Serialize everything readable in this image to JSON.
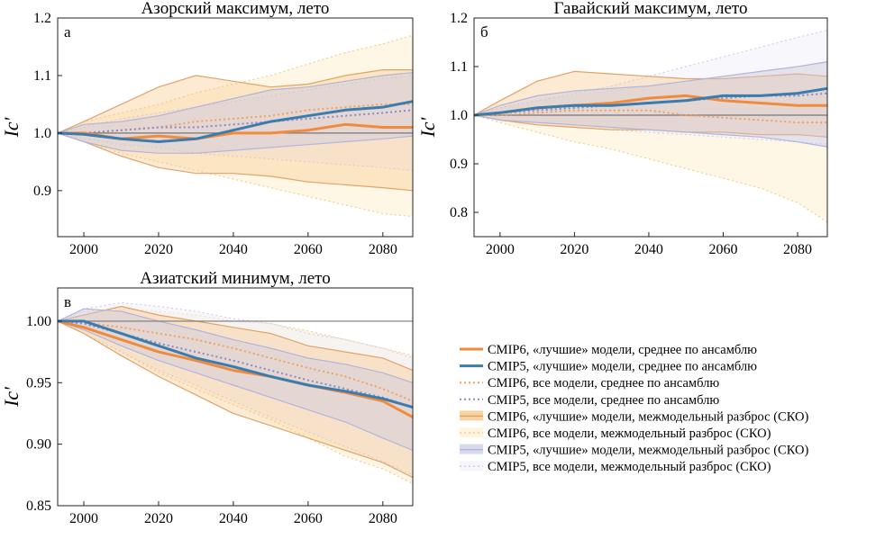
{
  "chart_data": [
    {
      "type": "line",
      "title": "Азорский максимум, лето",
      "panel_letter": "а",
      "ylabel": "Ic'",
      "xlim": [
        1993,
        2088
      ],
      "ylim": [
        0.82,
        1.2
      ],
      "x_ticks": [
        2000,
        2020,
        2040,
        2060,
        2080
      ],
      "y_ticks": [
        0.9,
        1.0,
        1.1,
        1.2
      ],
      "y_tick_labels": [
        "0.9",
        "1.0",
        "1.1",
        "1.2"
      ],
      "reference_line": 1.0,
      "x": [
        1993,
        2000,
        2010,
        2020,
        2030,
        2040,
        2050,
        2060,
        2070,
        2080,
        2088
      ],
      "series": [
        {
          "key": "cmip6_best_mean",
          "values": [
            1.0,
            1.0,
            0.99,
            0.995,
            0.99,
            1.0,
            1.0,
            1.005,
            1.015,
            1.01,
            1.01
          ]
        },
        {
          "key": "cmip5_best_mean",
          "values": [
            1.0,
            0.998,
            0.99,
            0.985,
            0.99,
            1.005,
            1.02,
            1.03,
            1.04,
            1.045,
            1.055
          ]
        },
        {
          "key": "cmip6_all_mean",
          "values": [
            1.0,
            1.0,
            1.005,
            1.01,
            1.02,
            1.025,
            1.03,
            1.04,
            1.045,
            1.05,
            1.05
          ]
        },
        {
          "key": "cmip5_all_mean",
          "values": [
            1.0,
            1.0,
            1.005,
            1.01,
            1.01,
            1.015,
            1.02,
            1.025,
            1.03,
            1.035,
            1.04
          ]
        }
      ],
      "bands": [
        {
          "key": "cmip6_all_sd",
          "lower": [
            1.0,
            0.985,
            0.965,
            0.95,
            0.935,
            0.92,
            0.905,
            0.89,
            0.875,
            0.86,
            0.855
          ],
          "upper": [
            1.0,
            1.02,
            1.035,
            1.05,
            1.07,
            1.085,
            1.1,
            1.12,
            1.14,
            1.155,
            1.17
          ]
        },
        {
          "key": "cmip5_all_sd",
          "lower": [
            1.0,
            0.99,
            0.98,
            0.975,
            0.965,
            0.96,
            0.955,
            0.95,
            0.945,
            0.94,
            0.935
          ],
          "upper": [
            1.0,
            1.01,
            1.025,
            1.035,
            1.045,
            1.055,
            1.065,
            1.075,
            1.085,
            1.095,
            1.1
          ]
        },
        {
          "key": "cmip6_best_sd",
          "lower": [
            1.0,
            0.985,
            0.96,
            0.94,
            0.93,
            0.93,
            0.925,
            0.915,
            0.91,
            0.905,
            0.9
          ],
          "upper": [
            1.0,
            1.02,
            1.05,
            1.08,
            1.1,
            1.09,
            1.08,
            1.085,
            1.1,
            1.11,
            1.11
          ]
        },
        {
          "key": "cmip5_best_sd",
          "lower": [
            1.0,
            0.985,
            0.97,
            0.965,
            0.965,
            0.97,
            0.975,
            0.98,
            0.985,
            0.99,
            0.995
          ],
          "upper": [
            1.0,
            1.015,
            1.02,
            1.03,
            1.045,
            1.06,
            1.075,
            1.08,
            1.09,
            1.1,
            1.105
          ]
        }
      ]
    },
    {
      "type": "line",
      "title": "Гавайский максимум, лето",
      "panel_letter": "б",
      "ylabel": "Ic'",
      "xlim": [
        1993,
        2088
      ],
      "ylim": [
        0.75,
        1.2
      ],
      "x_ticks": [
        2000,
        2020,
        2040,
        2060,
        2080
      ],
      "y_ticks": [
        0.8,
        0.9,
        1.0,
        1.1,
        1.2
      ],
      "y_tick_labels": [
        "0.8",
        "0.9",
        "1.0",
        "1.1",
        "1.2"
      ],
      "reference_line": 1.0,
      "x": [
        1993,
        2000,
        2010,
        2020,
        2030,
        2040,
        2050,
        2060,
        2070,
        2080,
        2088
      ],
      "series": [
        {
          "key": "cmip6_best_mean",
          "values": [
            1.0,
            1.005,
            1.015,
            1.02,
            1.025,
            1.035,
            1.04,
            1.03,
            1.025,
            1.02,
            1.02
          ]
        },
        {
          "key": "cmip5_best_mean",
          "values": [
            1.0,
            1.005,
            1.015,
            1.02,
            1.02,
            1.025,
            1.03,
            1.04,
            1.04,
            1.045,
            1.055
          ]
        },
        {
          "key": "cmip6_all_mean",
          "values": [
            1.0,
            1.0,
            1.005,
            1.01,
            1.01,
            1.01,
            1.0,
            0.995,
            0.99,
            0.985,
            0.985
          ]
        },
        {
          "key": "cmip5_all_mean",
          "values": [
            1.0,
            1.005,
            1.01,
            1.015,
            1.02,
            1.025,
            1.03,
            1.035,
            1.04,
            1.04,
            1.045
          ]
        }
      ],
      "bands": [
        {
          "key": "cmip6_all_sd",
          "lower": [
            1.0,
            0.985,
            0.965,
            0.945,
            0.93,
            0.91,
            0.89,
            0.87,
            0.85,
            0.82,
            0.78
          ],
          "upper": [
            1.0,
            1.015,
            1.03,
            1.04,
            1.05,
            1.06,
            1.07,
            1.08,
            1.09,
            1.1,
            1.11
          ]
        },
        {
          "key": "cmip5_all_sd",
          "lower": [
            1.0,
            0.99,
            0.98,
            0.975,
            0.97,
            0.965,
            0.96,
            0.955,
            0.95,
            0.945,
            0.94
          ],
          "upper": [
            1.0,
            1.015,
            1.03,
            1.045,
            1.06,
            1.08,
            1.1,
            1.12,
            1.14,
            1.16,
            1.175
          ]
        },
        {
          "key": "cmip6_best_sd",
          "lower": [
            1.0,
            0.99,
            0.98,
            0.975,
            0.97,
            0.97,
            0.965,
            0.965,
            0.96,
            0.96,
            0.955
          ],
          "upper": [
            1.0,
            1.03,
            1.07,
            1.09,
            1.085,
            1.08,
            1.075,
            1.075,
            1.08,
            1.085,
            1.08
          ]
        },
        {
          "key": "cmip5_best_sd",
          "lower": [
            1.0,
            0.99,
            0.985,
            0.98,
            0.975,
            0.97,
            0.965,
            0.96,
            0.955,
            0.945,
            0.935
          ],
          "upper": [
            1.0,
            1.02,
            1.04,
            1.05,
            1.055,
            1.06,
            1.07,
            1.08,
            1.09,
            1.1,
            1.11
          ]
        }
      ]
    },
    {
      "type": "line",
      "title": "Азиатский минимум, лето",
      "panel_letter": "в",
      "ylabel": "Ic'",
      "xlim": [
        1993,
        2088
      ],
      "ylim": [
        0.85,
        1.027
      ],
      "x_ticks": [
        2000,
        2020,
        2040,
        2060,
        2080
      ],
      "y_ticks": [
        0.85,
        0.9,
        0.95,
        1.0
      ],
      "y_tick_labels": [
        "0.85",
        "0.90",
        "0.95",
        "1.00"
      ],
      "reference_line": 1.0,
      "x": [
        1993,
        2000,
        2010,
        2020,
        2030,
        2040,
        2050,
        2060,
        2070,
        2080,
        2088
      ],
      "series": [
        {
          "key": "cmip6_best_mean",
          "values": [
            1.0,
            0.995,
            0.985,
            0.975,
            0.968,
            0.96,
            0.955,
            0.948,
            0.942,
            0.935,
            0.922
          ]
        },
        {
          "key": "cmip5_best_mean",
          "values": [
            1.0,
            1.0,
            0.99,
            0.98,
            0.97,
            0.963,
            0.955,
            0.948,
            0.943,
            0.937,
            0.93
          ]
        },
        {
          "key": "cmip6_all_mean",
          "values": [
            1.0,
            0.999,
            0.995,
            0.99,
            0.985,
            0.978,
            0.97,
            0.962,
            0.955,
            0.945,
            0.935
          ]
        },
        {
          "key": "cmip5_all_mean",
          "values": [
            1.0,
            0.998,
            0.99,
            0.982,
            0.975,
            0.968,
            0.96,
            0.952,
            0.945,
            0.938,
            0.93
          ]
        }
      ],
      "bands": [
        {
          "key": "cmip6_all_sd",
          "lower": [
            1.0,
            0.99,
            0.975,
            0.958,
            0.945,
            0.932,
            0.92,
            0.905,
            0.89,
            0.88,
            0.868
          ],
          "upper": [
            1.0,
            1.008,
            1.01,
            1.008,
            1.005,
            1.0,
            0.998,
            0.992,
            0.985,
            0.978,
            0.972
          ]
        },
        {
          "key": "cmip5_all_sd",
          "lower": [
            1.0,
            0.99,
            0.975,
            0.96,
            0.948,
            0.935,
            0.922,
            0.91,
            0.898,
            0.886,
            0.875
          ],
          "upper": [
            1.0,
            1.01,
            1.015,
            1.012,
            1.008,
            1.002,
            0.998,
            0.99,
            0.985,
            0.978,
            0.97
          ]
        },
        {
          "key": "cmip6_best_sd",
          "lower": [
            1.0,
            0.99,
            0.972,
            0.955,
            0.94,
            0.925,
            0.915,
            0.905,
            0.895,
            0.885,
            0.873
          ],
          "upper": [
            1.0,
            1.005,
            1.012,
            1.005,
            1.0,
            0.995,
            0.99,
            0.98,
            0.975,
            0.97,
            0.96
          ]
        },
        {
          "key": "cmip5_best_sd",
          "lower": [
            1.0,
            0.993,
            0.98,
            0.968,
            0.958,
            0.948,
            0.938,
            0.928,
            0.918,
            0.905,
            0.895
          ],
          "upper": [
            1.0,
            1.01,
            1.008,
            1.0,
            0.993,
            0.985,
            0.978,
            0.97,
            0.965,
            0.958,
            0.95
          ]
        }
      ]
    }
  ],
  "legend": [
    {
      "key": "cmip6_best_mean",
      "label": "CMIP6, «лучшие» модели, среднее по ансамблю",
      "style": "solid",
      "color": "#f08a3c",
      "width": 3
    },
    {
      "key": "cmip5_best_mean",
      "label": "CMIP5, «лучшие» модели, среднее по ансамблю",
      "style": "solid",
      "color": "#3a7cad",
      "width": 3
    },
    {
      "key": "cmip6_all_mean",
      "label": "CMIP6, все модели, среднее по ансамблю",
      "style": "dotted",
      "color": "#f0a060",
      "width": 2
    },
    {
      "key": "cmip5_all_mean",
      "label": "CMIP5, все модели, среднее по ансамблю",
      "style": "dotted",
      "color": "#8c88c4",
      "width": 2
    },
    {
      "key": "cmip6_best_sd",
      "label": "CMIP6, «лучшие» модели, межмодельный разброс (СКО)",
      "style": "band-solid",
      "color": "#f5c27e",
      "edge": "#e0a36a"
    },
    {
      "key": "cmip6_all_sd",
      "label": "CMIP6, все модели, межмодельный разброс (СКО)",
      "style": "band-dotted",
      "color": "#fdf0d2",
      "edge": "#f2cd96"
    },
    {
      "key": "cmip5_best_sd",
      "label": "CMIP5, «лучшие» модели, межмодельный разброс (СКО)",
      "style": "band-solid",
      "color": "#c9c9e4",
      "edge": "#b2b4dc"
    },
    {
      "key": "cmip5_all_sd",
      "label": "CMIP5, все модели, межмодельный разброс (СКО)",
      "style": "band-dotted",
      "color": "#f1f1f9",
      "edge": "#cfcfe8"
    }
  ],
  "colors": {
    "cmip6_best": "#f08a3c",
    "cmip5_best": "#3a7cad",
    "cmip6_all": "#f0a060",
    "cmip5_all": "#8c88c4",
    "reference_line": "#777777",
    "axis": "#222222"
  }
}
